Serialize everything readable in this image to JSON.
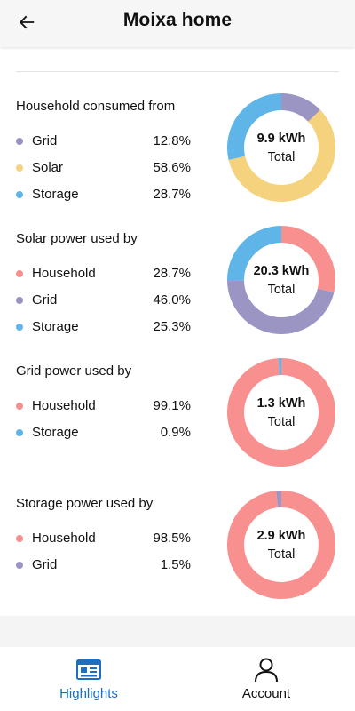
{
  "header": {
    "title": "Moixa home",
    "back_icon": "arrow-left-icon"
  },
  "colors": {
    "grid": "#9b95c3",
    "solar": "#f4d27e",
    "storage": "#5fb5e8",
    "household": "#f89090",
    "accent": "#1b6ec2"
  },
  "sections": [
    {
      "title": "Household consumed from",
      "total_value": "9.9 kWh",
      "total_label": "Total",
      "items": [
        {
          "label": "Grid",
          "value": "12.8%",
          "color": "#9b95c3",
          "pct": 12.8
        },
        {
          "label": "Solar",
          "value": "58.6%",
          "color": "#f4d27e",
          "pct": 58.6
        },
        {
          "label": "Storage",
          "value": "28.7%",
          "color": "#5fb5e8",
          "pct": 28.7
        }
      ]
    },
    {
      "title": "Solar power used by",
      "total_value": "20.3 kWh",
      "total_label": "Total",
      "items": [
        {
          "label": "Household",
          "value": "28.7%",
          "color": "#f89090",
          "pct": 28.7
        },
        {
          "label": "Grid",
          "value": "46.0%",
          "color": "#9b95c3",
          "pct": 46.0
        },
        {
          "label": "Storage",
          "value": "25.3%",
          "color": "#5fb5e8",
          "pct": 25.3
        }
      ]
    },
    {
      "title": "Grid power used by",
      "total_value": "1.3 kWh",
      "total_label": "Total",
      "items": [
        {
          "label": "Household",
          "value": "99.1%",
          "color": "#f89090",
          "pct": 99.1
        },
        {
          "label": "Storage",
          "value": "0.9%",
          "color": "#5fb5e8",
          "pct": 0.9
        }
      ]
    },
    {
      "title": "Storage power used by",
      "total_value": "2.9 kWh",
      "total_label": "Total",
      "items": [
        {
          "label": "Household",
          "value": "98.5%",
          "color": "#f89090",
          "pct": 98.5
        },
        {
          "label": "Grid",
          "value": "1.5%",
          "color": "#9b95c3",
          "pct": 1.5
        }
      ]
    }
  ],
  "bottom_nav": {
    "items": [
      {
        "label": "Highlights",
        "icon": "highlights-icon",
        "active": true
      },
      {
        "label": "Account",
        "icon": "account-icon",
        "active": false
      }
    ]
  }
}
